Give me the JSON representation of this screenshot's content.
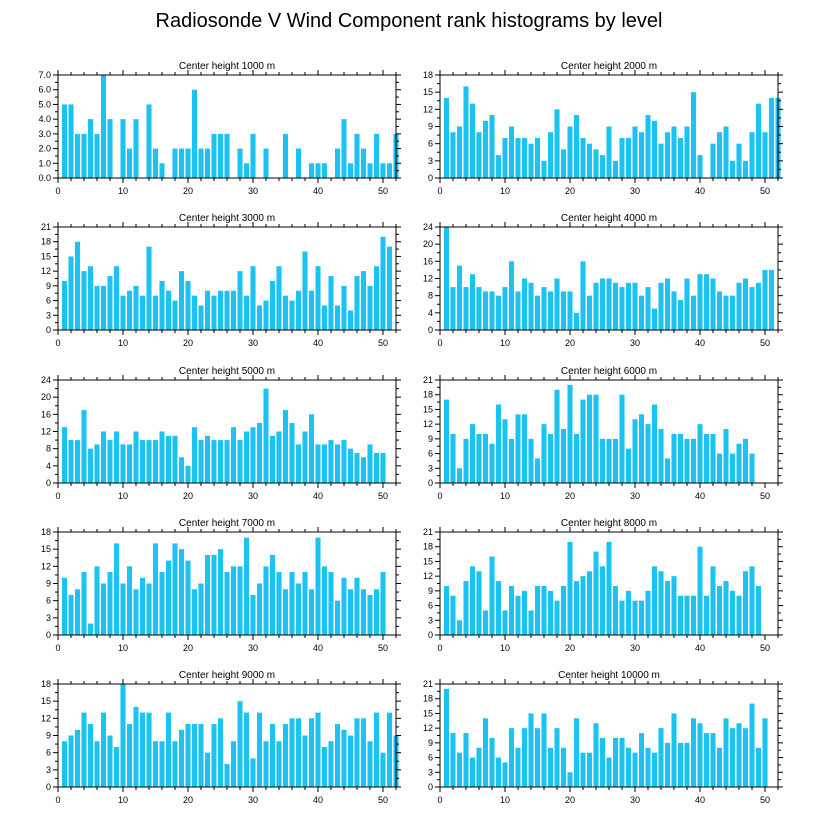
{
  "title": "Radiosonde V Wind Component rank histograms by level",
  "colors": {
    "bar": "#1ac3f2",
    "axis": "#000000",
    "background": "#ffffff"
  },
  "chart_data": [
    {
      "type": "bar",
      "title": "Center height 1000 m",
      "x": [
        1,
        2,
        3,
        4,
        5,
        6,
        7,
        8,
        9,
        10,
        11,
        12,
        13,
        14,
        15,
        16,
        17,
        18,
        19,
        20,
        21,
        22,
        23,
        24,
        25,
        26,
        27,
        28,
        29,
        30,
        31,
        32,
        33,
        34,
        35,
        36,
        37,
        38,
        39,
        40,
        41,
        42,
        43,
        44,
        45,
        46,
        47,
        48,
        49,
        50,
        51,
        52
      ],
      "values": [
        5,
        5,
        3,
        3,
        4,
        3,
        7,
        4,
        0,
        4,
        2,
        4,
        0,
        5,
        2,
        1,
        0,
        2,
        2,
        2,
        6,
        2,
        2,
        3,
        3,
        3,
        0,
        2,
        1,
        3,
        0,
        2,
        0,
        0,
        3,
        0,
        2,
        0,
        1,
        1,
        1,
        0,
        2,
        4,
        1,
        3,
        2,
        1,
        3,
        1,
        1,
        3
      ],
      "xlim": [
        0,
        52
      ],
      "ylim": [
        0,
        7
      ],
      "xticks": [
        0,
        10,
        20,
        30,
        40,
        50
      ],
      "yticks": [
        0,
        1,
        2,
        3,
        4,
        5,
        6,
        7
      ],
      "ytick_labels": [
        "0.0",
        "1.0",
        "2.0",
        "3.0",
        "4.0",
        "5.0",
        "6.0",
        "7.0"
      ]
    },
    {
      "type": "bar",
      "title": "Center height 2000 m",
      "x": [
        1,
        2,
        3,
        4,
        5,
        6,
        7,
        8,
        9,
        10,
        11,
        12,
        13,
        14,
        15,
        16,
        17,
        18,
        19,
        20,
        21,
        22,
        23,
        24,
        25,
        26,
        27,
        28,
        29,
        30,
        31,
        32,
        33,
        34,
        35,
        36,
        37,
        38,
        39,
        40,
        41,
        42,
        43,
        44,
        45,
        46,
        47,
        48,
        49,
        50,
        51,
        52
      ],
      "values": [
        14,
        8,
        9,
        16,
        13,
        8,
        10,
        11,
        4,
        7,
        9,
        7,
        7,
        6,
        7,
        3,
        8,
        12,
        5,
        9,
        11,
        7,
        6,
        5,
        4,
        9,
        3,
        7,
        7,
        9,
        8,
        11,
        10,
        6,
        8,
        9,
        7,
        9,
        15,
        4,
        0,
        6,
        8,
        9,
        3,
        6,
        3,
        8,
        13,
        8,
        14,
        14
      ],
      "xlim": [
        0,
        52
      ],
      "ylim": [
        0,
        18
      ],
      "xticks": [
        0,
        10,
        20,
        30,
        40,
        50
      ],
      "yticks": [
        0,
        3,
        6,
        9,
        12,
        15,
        18
      ],
      "ytick_labels": [
        "0",
        "3",
        "6",
        "9",
        "12",
        "15",
        "18"
      ]
    },
    {
      "type": "bar",
      "title": "Center height 3000 m",
      "x": [
        1,
        2,
        3,
        4,
        5,
        6,
        7,
        8,
        9,
        10,
        11,
        12,
        13,
        14,
        15,
        16,
        17,
        18,
        19,
        20,
        21,
        22,
        23,
        24,
        25,
        26,
        27,
        28,
        29,
        30,
        31,
        32,
        33,
        34,
        35,
        36,
        37,
        38,
        39,
        40,
        41,
        42,
        43,
        44,
        45,
        46,
        47,
        48,
        49,
        50,
        51,
        52
      ],
      "values": [
        10,
        15,
        18,
        12,
        13,
        9,
        9,
        11,
        13,
        7,
        8,
        9,
        7,
        17,
        7,
        10,
        8,
        6,
        12,
        10,
        7,
        5,
        8,
        7,
        8,
        8,
        8,
        12,
        7,
        13,
        5,
        6,
        10,
        13,
        7,
        6,
        8,
        16,
        8,
        13,
        5,
        11,
        5,
        9,
        4,
        11,
        12,
        9,
        13,
        19,
        17,
        0
      ],
      "xlim": [
        0,
        52
      ],
      "ylim": [
        0,
        21
      ],
      "xticks": [
        0,
        10,
        20,
        30,
        40,
        50
      ],
      "yticks": [
        0,
        3,
        6,
        9,
        12,
        15,
        18,
        21
      ],
      "ytick_labels": [
        "0",
        "3",
        "6",
        "9",
        "12",
        "15",
        "18",
        "21"
      ]
    },
    {
      "type": "bar",
      "title": "Center height 4000 m",
      "x": [
        1,
        2,
        3,
        4,
        5,
        6,
        7,
        8,
        9,
        10,
        11,
        12,
        13,
        14,
        15,
        16,
        17,
        18,
        19,
        20,
        21,
        22,
        23,
        24,
        25,
        26,
        27,
        28,
        29,
        30,
        31,
        32,
        33,
        34,
        35,
        36,
        37,
        38,
        39,
        40,
        41,
        42,
        43,
        44,
        45,
        46,
        47,
        48,
        49,
        50,
        51,
        52
      ],
      "values": [
        24,
        10,
        15,
        10,
        13,
        10,
        9,
        9,
        8,
        10,
        16,
        9,
        12,
        11,
        8,
        10,
        9,
        12,
        9,
        9,
        4,
        16,
        8,
        11,
        12,
        12,
        11,
        10,
        11,
        11,
        8,
        10,
        5,
        11,
        12,
        9,
        7,
        12,
        8,
        13,
        13,
        12,
        9,
        8,
        8,
        11,
        12,
        10,
        11,
        14,
        14,
        0
      ],
      "xlim": [
        0,
        52
      ],
      "ylim": [
        0,
        24
      ],
      "xticks": [
        0,
        10,
        20,
        30,
        40,
        50
      ],
      "yticks": [
        0,
        4,
        8,
        12,
        16,
        20,
        24
      ],
      "ytick_labels": [
        "0",
        "4",
        "8",
        "12",
        "16",
        "20",
        "24"
      ]
    },
    {
      "type": "bar",
      "title": "Center height 5000 m",
      "x": [
        1,
        2,
        3,
        4,
        5,
        6,
        7,
        8,
        9,
        10,
        11,
        12,
        13,
        14,
        15,
        16,
        17,
        18,
        19,
        20,
        21,
        22,
        23,
        24,
        25,
        26,
        27,
        28,
        29,
        30,
        31,
        32,
        33,
        34,
        35,
        36,
        37,
        38,
        39,
        40,
        41,
        42,
        43,
        44,
        45,
        46,
        47,
        48,
        49,
        50,
        51,
        52
      ],
      "values": [
        13,
        10,
        10,
        17,
        8,
        9,
        12,
        10,
        12,
        9,
        9,
        12,
        10,
        10,
        10,
        12,
        11,
        11,
        6,
        4,
        13,
        10,
        11,
        10,
        10,
        10,
        13,
        10,
        12,
        13,
        14,
        22,
        11,
        12,
        17,
        14,
        9,
        12,
        16,
        9,
        9,
        10,
        9,
        10,
        8,
        7,
        6,
        9,
        7,
        7,
        0,
        0
      ],
      "xlim": [
        0,
        52
      ],
      "ylim": [
        0,
        24
      ],
      "xticks": [
        0,
        10,
        20,
        30,
        40,
        50
      ],
      "yticks": [
        0,
        4,
        8,
        12,
        16,
        20,
        24
      ],
      "ytick_labels": [
        "0",
        "4",
        "8",
        "12",
        "16",
        "20",
        "24"
      ]
    },
    {
      "type": "bar",
      "title": "Center height 6000 m",
      "x": [
        1,
        2,
        3,
        4,
        5,
        6,
        7,
        8,
        9,
        10,
        11,
        12,
        13,
        14,
        15,
        16,
        17,
        18,
        19,
        20,
        21,
        22,
        23,
        24,
        25,
        26,
        27,
        28,
        29,
        30,
        31,
        32,
        33,
        34,
        35,
        36,
        37,
        38,
        39,
        40,
        41,
        42,
        43,
        44,
        45,
        46,
        47,
        48,
        49,
        50,
        51,
        52
      ],
      "values": [
        17,
        10,
        3,
        9,
        12,
        10,
        10,
        8,
        16,
        13,
        9,
        14,
        14,
        9,
        5,
        12,
        10,
        19,
        11,
        20,
        10,
        17,
        18,
        18,
        9,
        9,
        9,
        18,
        7,
        13,
        14,
        12,
        16,
        11,
        5,
        10,
        10,
        9,
        9,
        12,
        10,
        10,
        6,
        11,
        6,
        8,
        9,
        6,
        0,
        0,
        0,
        0
      ],
      "xlim": [
        0,
        52
      ],
      "ylim": [
        0,
        21
      ],
      "xticks": [
        0,
        10,
        20,
        30,
        40,
        50
      ],
      "yticks": [
        0,
        3,
        6,
        9,
        12,
        15,
        18,
        21
      ],
      "ytick_labels": [
        "0",
        "3",
        "6",
        "9",
        "12",
        "15",
        "18",
        "21"
      ]
    },
    {
      "type": "bar",
      "title": "Center height 7000 m",
      "x": [
        1,
        2,
        3,
        4,
        5,
        6,
        7,
        8,
        9,
        10,
        11,
        12,
        13,
        14,
        15,
        16,
        17,
        18,
        19,
        20,
        21,
        22,
        23,
        24,
        25,
        26,
        27,
        28,
        29,
        30,
        31,
        32,
        33,
        34,
        35,
        36,
        37,
        38,
        39,
        40,
        41,
        42,
        43,
        44,
        45,
        46,
        47,
        48,
        49,
        50,
        51,
        52
      ],
      "values": [
        10,
        7,
        8,
        11,
        2,
        12,
        9,
        11,
        16,
        9,
        12,
        8,
        10,
        9,
        16,
        11,
        13,
        16,
        15,
        13,
        8,
        9,
        14,
        14,
        15,
        11,
        12,
        12,
        17,
        7,
        9,
        12,
        14,
        11,
        8,
        11,
        9,
        11,
        8,
        17,
        12,
        11,
        6,
        10,
        8,
        10,
        8,
        7,
        8,
        11,
        0,
        0
      ],
      "xlim": [
        0,
        52
      ],
      "ylim": [
        0,
        18
      ],
      "xticks": [
        0,
        10,
        20,
        30,
        40,
        50
      ],
      "yticks": [
        0,
        3,
        6,
        9,
        12,
        15,
        18
      ],
      "ytick_labels": [
        "0",
        "3",
        "6",
        "9",
        "12",
        "15",
        "18"
      ]
    },
    {
      "type": "bar",
      "title": "Center height 8000 m",
      "x": [
        1,
        2,
        3,
        4,
        5,
        6,
        7,
        8,
        9,
        10,
        11,
        12,
        13,
        14,
        15,
        16,
        17,
        18,
        19,
        20,
        21,
        22,
        23,
        24,
        25,
        26,
        27,
        28,
        29,
        30,
        31,
        32,
        33,
        34,
        35,
        36,
        37,
        38,
        39,
        40,
        41,
        42,
        43,
        44,
        45,
        46,
        47,
        48,
        49,
        50,
        51,
        52
      ],
      "values": [
        10,
        8,
        3,
        11,
        14,
        13,
        5,
        16,
        11,
        5,
        10,
        8,
        9,
        5,
        10,
        10,
        9,
        7,
        10,
        19,
        11,
        12,
        13,
        17,
        14,
        19,
        10,
        7,
        9,
        7,
        7,
        9,
        14,
        13,
        11,
        12,
        8,
        8,
        8,
        18,
        8,
        14,
        10,
        11,
        9,
        8,
        13,
        14,
        10,
        0,
        0,
        0
      ],
      "xlim": [
        0,
        52
      ],
      "ylim": [
        0,
        21
      ],
      "xticks": [
        0,
        10,
        20,
        30,
        40,
        50
      ],
      "yticks": [
        0,
        3,
        6,
        9,
        12,
        15,
        18,
        21
      ],
      "ytick_labels": [
        "0",
        "3",
        "6",
        "9",
        "12",
        "15",
        "18",
        "21"
      ]
    },
    {
      "type": "bar",
      "title": "Center height 9000 m",
      "x": [
        1,
        2,
        3,
        4,
        5,
        6,
        7,
        8,
        9,
        10,
        11,
        12,
        13,
        14,
        15,
        16,
        17,
        18,
        19,
        20,
        21,
        22,
        23,
        24,
        25,
        26,
        27,
        28,
        29,
        30,
        31,
        32,
        33,
        34,
        35,
        36,
        37,
        38,
        39,
        40,
        41,
        42,
        43,
        44,
        45,
        46,
        47,
        48,
        49,
        50,
        51,
        52
      ],
      "values": [
        8,
        9,
        10,
        13,
        11,
        8,
        13,
        9,
        7,
        18,
        11,
        14,
        13,
        13,
        8,
        8,
        13,
        8,
        10,
        11,
        11,
        11,
        6,
        11,
        12,
        4,
        8,
        15,
        13,
        5,
        13,
        8,
        11,
        8,
        11,
        12,
        12,
        9,
        12,
        13,
        7,
        8,
        11,
        10,
        9,
        12,
        12,
        8,
        13,
        6,
        13,
        9
      ],
      "xlim": [
        0,
        52
      ],
      "ylim": [
        0,
        18
      ],
      "xticks": [
        0,
        10,
        20,
        30,
        40,
        50
      ],
      "yticks": [
        0,
        3,
        6,
        9,
        12,
        15,
        18
      ],
      "ytick_labels": [
        "0",
        "3",
        "6",
        "9",
        "12",
        "15",
        "18"
      ]
    },
    {
      "type": "bar",
      "title": "Center height 10000 m",
      "x": [
        1,
        2,
        3,
        4,
        5,
        6,
        7,
        8,
        9,
        10,
        11,
        12,
        13,
        14,
        15,
        16,
        17,
        18,
        19,
        20,
        21,
        22,
        23,
        24,
        25,
        26,
        27,
        28,
        29,
        30,
        31,
        32,
        33,
        34,
        35,
        36,
        37,
        38,
        39,
        40,
        41,
        42,
        43,
        44,
        45,
        46,
        47,
        48,
        49,
        50,
        51,
        52
      ],
      "values": [
        20,
        11,
        7,
        11,
        6,
        8,
        14,
        10,
        6,
        5,
        12,
        8,
        12,
        15,
        12,
        15,
        8,
        12,
        8,
        3,
        14,
        7,
        7,
        13,
        10,
        6,
        10,
        10,
        8,
        7,
        11,
        8,
        7,
        12,
        9,
        15,
        9,
        9,
        14,
        13,
        11,
        11,
        8,
        14,
        12,
        13,
        12,
        17,
        8,
        14,
        0,
        0
      ],
      "xlim": [
        0,
        52
      ],
      "ylim": [
        0,
        21
      ],
      "xticks": [
        0,
        10,
        20,
        30,
        40,
        50
      ],
      "yticks": [
        0,
        3,
        6,
        9,
        12,
        15,
        18,
        21
      ],
      "ytick_labels": [
        "0",
        "3",
        "6",
        "9",
        "12",
        "15",
        "18",
        "21"
      ]
    }
  ]
}
